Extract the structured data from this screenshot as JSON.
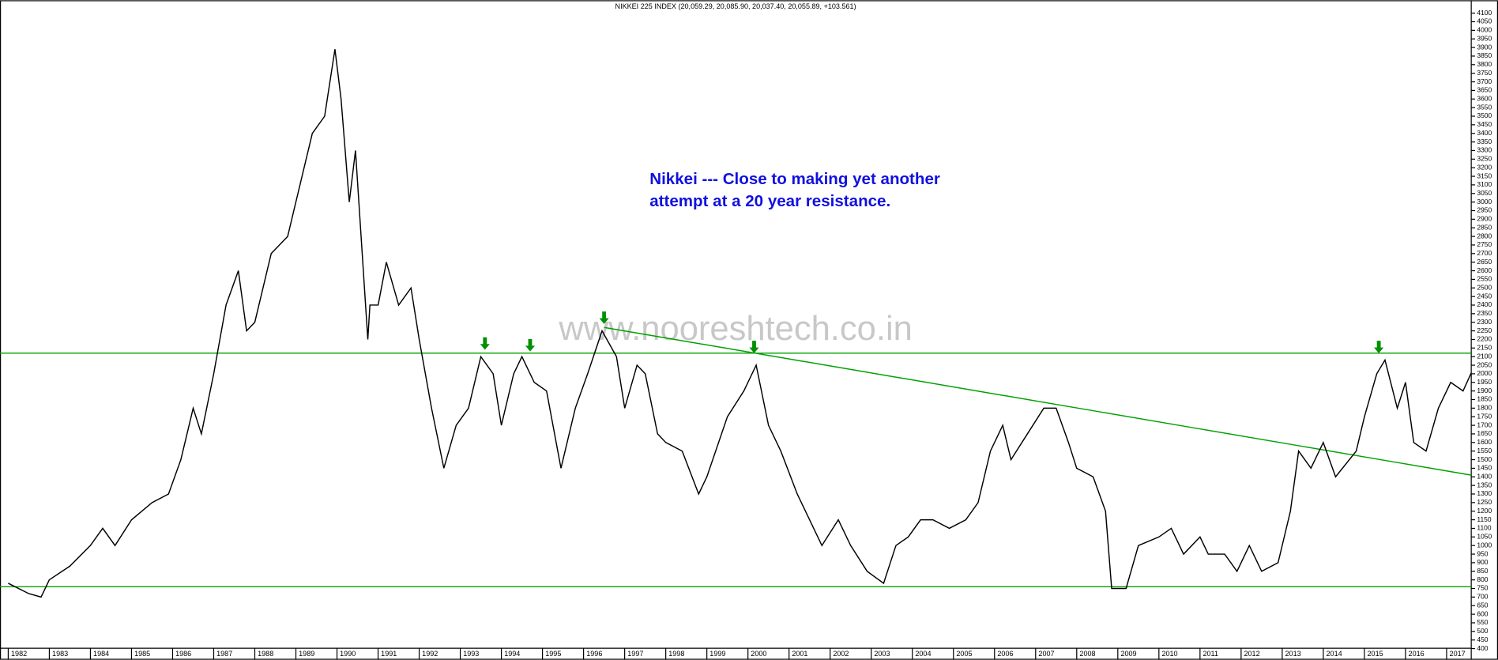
{
  "chart_data": {
    "type": "line",
    "title": "NIKKEI 225 INDEX (20,059.29, 20,085.90, 20,037.40, 20,055.89, +103.561)",
    "annotation": [
      "Nikkei --- Close to making yet another",
      "attempt at a 20 year resistance."
    ],
    "watermark": "www.nooreshtech.co.in",
    "color": "#000000",
    "x": [
      1982.0,
      1982.5,
      1982.8,
      1983.0,
      1983.5,
      1984.0,
      1984.3,
      1984.6,
      1985.0,
      1985.5,
      1985.9,
      1986.2,
      1986.5,
      1986.7,
      1987.0,
      1987.3,
      1987.6,
      1987.8,
      1988.0,
      1988.4,
      1988.8,
      1989.0,
      1989.4,
      1989.7,
      1989.95,
      1990.1,
      1990.3,
      1990.45,
      1990.75,
      1990.8,
      1991.0,
      1991.2,
      1991.5,
      1991.8,
      1992.0,
      1992.3,
      1992.6,
      1992.9,
      1993.2,
      1993.5,
      1993.8,
      1994.0,
      1994.3,
      1994.5,
      1994.8,
      1995.1,
      1995.45,
      1995.8,
      1996.1,
      1996.45,
      1996.8,
      1997.0,
      1997.3,
      1997.5,
      1997.8,
      1998.0,
      1998.4,
      1998.8,
      1999.0,
      1999.5,
      1999.9,
      2000.2,
      2000.5,
      2000.8,
      2001.2,
      2001.7,
      2001.8,
      2002.2,
      2002.5,
      2002.9,
      2003.3,
      2003.6,
      2003.9,
      2004.2,
      2004.5,
      2004.9,
      2005.3,
      2005.6,
      2005.9,
      2006.2,
      2006.4,
      2006.8,
      2007.2,
      2007.5,
      2007.8,
      2008.0,
      2008.4,
      2008.7,
      2008.85,
      2009.2,
      2009.5,
      2010.0,
      2010.3,
      2010.6,
      2011.0,
      2011.2,
      2011.6,
      2011.9,
      2012.2,
      2012.5,
      2012.9,
      2013.2,
      2013.4,
      2013.7,
      2014.0,
      2014.3,
      2014.8,
      2015.0,
      2015.3,
      2015.5,
      2015.8,
      2016.0,
      2016.2,
      2016.5,
      2016.8,
      2017.1,
      2017.4,
      2017.6
    ],
    "values": [
      780,
      720,
      700,
      800,
      880,
      1000,
      1100,
      1000,
      1150,
      1250,
      1300,
      1500,
      1800,
      1650,
      2000,
      2400,
      2600,
      2250,
      2300,
      2700,
      2800,
      3000,
      3400,
      3500,
      3890,
      3600,
      3000,
      3300,
      2200,
      2400,
      2400,
      2650,
      2400,
      2500,
      2200,
      1800,
      1450,
      1700,
      1800,
      2100,
      2000,
      1700,
      2000,
      2100,
      1950,
      1900,
      1450,
      1800,
      2000,
      2250,
      2100,
      1800,
      2050,
      2000,
      1650,
      1600,
      1550,
      1300,
      1400,
      1750,
      1900,
      2050,
      1700,
      1550,
      1300,
      1050,
      1000,
      1150,
      1000,
      850,
      780,
      1000,
      1050,
      1150,
      1150,
      1100,
      1150,
      1250,
      1550,
      1700,
      1500,
      1650,
      1800,
      1800,
      1600,
      1450,
      1400,
      1200,
      750,
      750,
      1000,
      1050,
      1100,
      950,
      1050,
      950,
      950,
      850,
      1000,
      850,
      900,
      1200,
      1550,
      1450,
      1600,
      1400,
      1550,
      1750,
      2000,
      2080,
      1800,
      1950,
      1600,
      1550,
      1800,
      1950,
      1900,
      2005
    ],
    "reference_lines": [
      {
        "value": 2120,
        "color": "#00a000"
      },
      {
        "value": 760,
        "color": "#00a000"
      }
    ],
    "trendline": {
      "x": [
        1996.5,
        2017.6
      ],
      "y": [
        2270,
        1410
      ],
      "color": "#00a000"
    },
    "arrows": {
      "x": [
        1993.6,
        1994.7,
        1996.5,
        2000.15,
        2015.35
      ],
      "y": [
        2140,
        2130,
        2290,
        2120,
        2120
      ],
      "color": "#009000"
    },
    "xlim": [
      1981.8,
      2017.6
    ],
    "ylim": [
      335,
      4175
    ],
    "xticks": [
      1982,
      1983,
      1984,
      1985,
      1986,
      1987,
      1988,
      1989,
      1990,
      1991,
      1992,
      1993,
      1994,
      1995,
      1996,
      1997,
      1998,
      1999,
      2000,
      2001,
      2002,
      2003,
      2004,
      2005,
      2006,
      2007,
      2008,
      2009,
      2010,
      2011,
      2012,
      2013,
      2014,
      2015,
      2016,
      2017
    ],
    "yticks": [
      400,
      450,
      500,
      550,
      600,
      650,
      700,
      750,
      800,
      850,
      900,
      950,
      1000,
      1050,
      1100,
      1150,
      1200,
      1250,
      1300,
      1350,
      1400,
      1450,
      1500,
      1550,
      1600,
      1650,
      1700,
      1750,
      1800,
      1850,
      1900,
      1950,
      2000,
      2050,
      2100,
      2150,
      2200,
      2250,
      2300,
      2350,
      2400,
      2450,
      2500,
      2550,
      2600,
      2650,
      2700,
      2750,
      2800,
      2850,
      2900,
      2950,
      3000,
      3050,
      3100,
      3150,
      3200,
      3250,
      3300,
      3350,
      3400,
      3450,
      3500,
      3550,
      3600,
      3650,
      3700,
      3750,
      3800,
      3850,
      3900,
      3950,
      4000,
      4050,
      4100
    ]
  }
}
